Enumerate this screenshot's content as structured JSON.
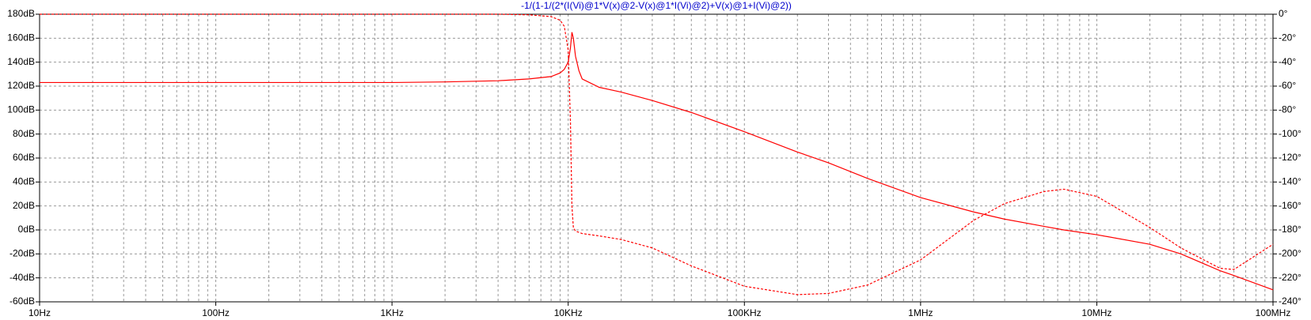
{
  "chart_data": {
    "type": "line",
    "title": "-1/(1-1/(2*(I(Vi)@1*V(x)@2-V(x)@1*I(Vi)@2)+V(x)@1+I(Vi)@2))",
    "title_color": "#0000cc",
    "xscale": "log",
    "grid": true,
    "x": [
      10,
      100,
      1000,
      2000,
      4000,
      6000,
      8000,
      9000,
      9500,
      10000,
      10300,
      10500,
      10700,
      11000,
      11500,
      12000,
      15000,
      20000,
      30000,
      50000,
      100000,
      200000,
      300000,
      500000,
      1000000,
      2000000,
      3000000,
      5000000,
      6500000,
      10000000,
      20000000,
      30000000,
      50000000,
      60000000,
      100000000
    ],
    "series": [
      {
        "color": "#ff0000",
        "style": "solid",
        "axis": "y",
        "values": [
          123,
          123,
          123,
          123.5,
          124.5,
          126,
          128,
          131,
          134,
          140,
          152,
          165,
          160,
          145,
          133,
          126,
          119,
          115,
          108,
          98,
          82,
          65,
          56,
          43,
          27,
          15,
          9,
          3,
          0,
          -4,
          -12,
          -20,
          -34,
          -38,
          -50
        ]
      },
      {
        "color": "#ff0000",
        "style": "dashed",
        "axis": "y2",
        "values": [
          0,
          0,
          0,
          0,
          0,
          -0.5,
          -2,
          -5,
          -10,
          -30,
          -90,
          -160,
          -178,
          -181,
          -182,
          -183,
          -185,
          -188,
          -195,
          -210,
          -227,
          -234,
          -233,
          -226,
          -205,
          -172,
          -158,
          -148,
          -146,
          -152,
          -178,
          -195,
          -212,
          -213,
          -192
        ]
      }
    ],
    "xlim": [
      10,
      100000000
    ],
    "xticks": [
      {
        "value": 10,
        "label": "10Hz"
      },
      {
        "value": 100,
        "label": "100Hz"
      },
      {
        "value": 1000,
        "label": "1KHz"
      },
      {
        "value": 10000,
        "label": "10KHz"
      },
      {
        "value": 100000,
        "label": "100KHz"
      },
      {
        "value": 1000000,
        "label": "1MHz"
      },
      {
        "value": 10000000,
        "label": "10MHz"
      },
      {
        "value": 100000000,
        "label": "100MHz"
      }
    ],
    "ylim": [
      -60,
      180
    ],
    "yticks": [
      {
        "value": -60,
        "label": "-60dB"
      },
      {
        "value": -40,
        "label": "-40dB"
      },
      {
        "value": -20,
        "label": "-20dB"
      },
      {
        "value": 0,
        "label": "0dB"
      },
      {
        "value": 20,
        "label": "20dB"
      },
      {
        "value": 40,
        "label": "40dB"
      },
      {
        "value": 60,
        "label": "60dB"
      },
      {
        "value": 80,
        "label": "80dB"
      },
      {
        "value": 100,
        "label": "100dB"
      },
      {
        "value": 120,
        "label": "120dB"
      },
      {
        "value": 140,
        "label": "140dB"
      },
      {
        "value": 160,
        "label": "160dB"
      },
      {
        "value": 180,
        "label": "180dB"
      }
    ],
    "y2lim": [
      -240,
      0
    ],
    "y2ticks": [
      {
        "value": -240,
        "label": "-240°"
      },
      {
        "value": -220,
        "label": "-220°"
      },
      {
        "value": -200,
        "label": "-200°"
      },
      {
        "value": -180,
        "label": "-180°"
      },
      {
        "value": -160,
        "label": "-160°"
      },
      {
        "value": -140,
        "label": "-140°"
      },
      {
        "value": -120,
        "label": "-120°"
      },
      {
        "value": -100,
        "label": "-100°"
      },
      {
        "value": -80,
        "label": "-80°"
      },
      {
        "value": -60,
        "label": "-60°"
      },
      {
        "value": -40,
        "label": "-40°"
      },
      {
        "value": -20,
        "label": "-20°"
      },
      {
        "value": 0,
        "label": "0°"
      }
    ]
  }
}
